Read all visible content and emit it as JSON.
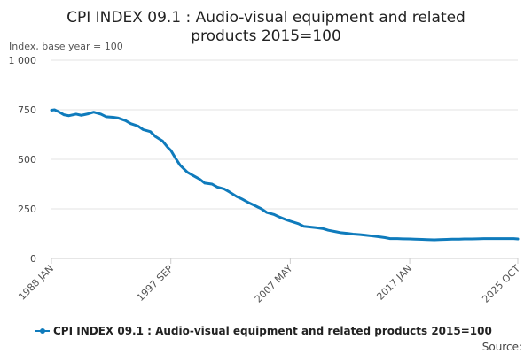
{
  "chart_data": {
    "type": "line",
    "title_lines": [
      "CPI INDEX 09.1 : Audio-visual equipment and related",
      "products 2015=100"
    ],
    "ylabel": "Index, base year = 100",
    "xlabel": "",
    "ylim": [
      0,
      1000
    ],
    "yticks": [
      {
        "value": 0,
        "label": "0"
      },
      {
        "value": 250,
        "label": "250"
      },
      {
        "value": 500,
        "label": "500"
      },
      {
        "value": 750,
        "label": "750"
      },
      {
        "value": 1000,
        "label": "1 000"
      }
    ],
    "xlim": [
      "1988 JAN",
      "2025 OCT"
    ],
    "xticks": [
      "1988 JAN",
      "1997 SEP",
      "2007 MAY",
      "2017 JAN",
      "2025 OCT"
    ],
    "grid": true,
    "legend_position": "bottom",
    "colors": {
      "series": "#0f7bbc",
      "grid": "#e3e3e3",
      "axis": "#cccccc"
    },
    "series": [
      {
        "name": "CPI INDEX 09.1 : Audio-visual equipment and related products 2015=100",
        "x": [
          "1988 JAN",
          "1988 APR",
          "1988 AUG",
          "1989 JAN",
          "1989 JUN",
          "1990 JAN",
          "1990 JUN",
          "1991 JAN",
          "1991 JUN",
          "1992 JAN",
          "1992 JUN",
          "1993 JAN",
          "1993 JUN",
          "1994 JAN",
          "1994 JUN",
          "1995 JAN",
          "1995 JUN",
          "1996 JAN",
          "1996 JUN",
          "1997 JAN",
          "1997 JUN",
          "1997 SEP",
          "1998 JAN",
          "1998 JUN",
          "1999 JAN",
          "1999 JUN",
          "2000 JAN",
          "2000 JUN",
          "2001 JAN",
          "2001 JUN",
          "2002 JAN",
          "2002 JUN",
          "2003 JAN",
          "2003 JUN",
          "2004 JAN",
          "2004 JUN",
          "2005 JAN",
          "2005 JUN",
          "2006 JAN",
          "2006 JUN",
          "2007 JAN",
          "2007 MAY",
          "2008 JAN",
          "2008 JUN",
          "2009 JAN",
          "2009 JUN",
          "2010 JAN",
          "2010 JUN",
          "2011 JAN",
          "2011 JUN",
          "2012 JAN",
          "2012 JUN",
          "2013 JAN",
          "2013 JUN",
          "2014 JAN",
          "2014 JUN",
          "2015 JAN",
          "2015 JUN",
          "2016 JAN",
          "2016 JUN",
          "2017 JAN",
          "2017 JUN",
          "2018 JAN",
          "2018 JUN",
          "2019 JAN",
          "2019 JUN",
          "2020 JAN",
          "2020 JUN",
          "2021 JAN",
          "2021 JUN",
          "2022 JAN",
          "2022 JUN",
          "2023 JAN",
          "2023 JUN",
          "2024 JAN",
          "2024 JUN",
          "2025 JAN",
          "2025 JUN",
          "2025 OCT"
        ],
        "values": [
          748,
          750,
          740,
          725,
          720,
          728,
          722,
          730,
          738,
          728,
          715,
          712,
          708,
          695,
          680,
          668,
          650,
          640,
          615,
          592,
          560,
          545,
          510,
          470,
          435,
          420,
          400,
          380,
          375,
          360,
          350,
          335,
          312,
          300,
          280,
          268,
          250,
          232,
          222,
          210,
          195,
          188,
          175,
          162,
          158,
          155,
          150,
          142,
          135,
          130,
          126,
          123,
          120,
          117,
          113,
          110,
          105,
          100,
          100,
          99,
          98,
          97,
          96,
          95,
          94,
          95,
          96,
          97,
          97,
          98,
          98,
          99,
          100,
          100,
          100,
          100,
          100,
          100,
          98
        ]
      }
    ],
    "legend": {
      "label": "CPI INDEX 09.1 : Audio-visual equipment and related products 2015=100"
    },
    "source": "Source:"
  }
}
